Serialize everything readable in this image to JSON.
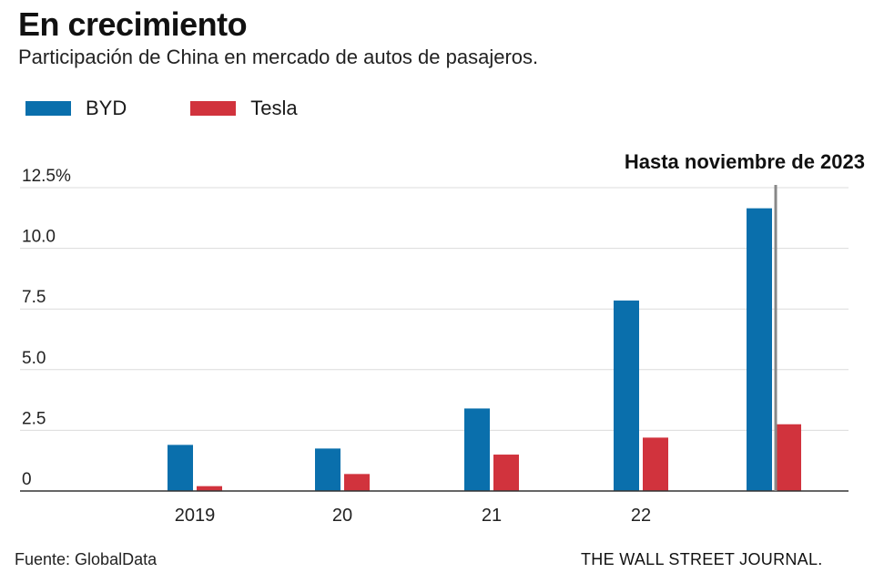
{
  "header": {
    "title": "En crecimiento",
    "subtitle": "Participación de China en mercado de autos de pasajeros."
  },
  "footer": {
    "source": "Fuente: GlobalData",
    "publisher": "THE WALL STREET JOURNAL."
  },
  "chart_data": {
    "type": "bar",
    "title": "En crecimiento",
    "subtitle": "Participación de China en mercado de autos de pasajeros.",
    "categories": [
      "2019",
      "20",
      "21",
      "22",
      ""
    ],
    "series": [
      {
        "name": "BYD",
        "color": "#0a6fac",
        "values": [
          1.9,
          1.75,
          3.4,
          7.85,
          11.65
        ]
      },
      {
        "name": "Tesla",
        "color": "#d1333d",
        "values": [
          0.2,
          0.7,
          1.5,
          2.2,
          2.75
        ]
      }
    ],
    "y_ticks": [
      0,
      2.5,
      5.0,
      7.5,
      10.0,
      12.5
    ],
    "y_tick_labels": [
      "0",
      "2.5",
      "5.0",
      "7.5",
      "10.0",
      "12.5%"
    ],
    "ylim": [
      0,
      12.5
    ],
    "grid": true,
    "legend_position": "top-left",
    "annotation": {
      "text": "Hasta noviembre de 2023",
      "category_index": 4
    }
  }
}
